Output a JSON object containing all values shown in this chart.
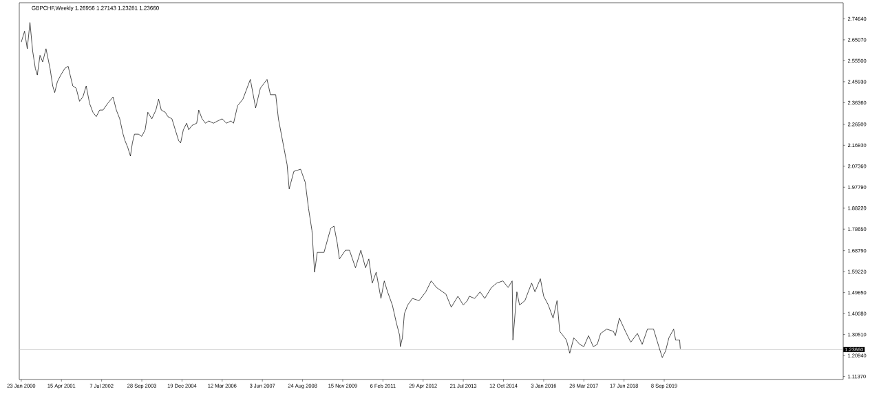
{
  "chart_data": {
    "type": "line",
    "title": "GBPCHF,Weekly 1.26956 1.27143 1.23281 1.23660",
    "x": [
      "2000-01-23",
      "2000-02-29",
      "2000-03-30",
      "2000-04-29",
      "2000-05-29",
      "2000-06-28",
      "2000-07-20",
      "2000-08-19",
      "2000-09-18",
      "2000-10-25",
      "2000-12-09",
      "2001-01-08",
      "2001-01-30",
      "2001-03-01",
      "2001-04-08",
      "2001-05-22",
      "2001-06-29",
      "2001-07-21",
      "2001-08-20",
      "2001-09-26",
      "2001-11-03",
      "2001-12-10",
      "2002-01-16",
      "2002-02-23",
      "2002-04-01",
      "2002-05-08",
      "2002-06-15",
      "2002-07-22",
      "2002-09-12",
      "2002-11-11",
      "2002-12-18",
      "2003-01-25",
      "2003-03-03",
      "2003-03-25",
      "2003-04-24",
      "2003-05-24",
      "2003-06-15",
      "2003-07-08",
      "2003-08-22",
      "2003-09-28",
      "2003-11-04",
      "2003-12-04",
      "2004-01-18",
      "2004-03-03",
      "2004-04-02",
      "2004-05-02",
      "2004-06-15",
      "2004-07-15",
      "2004-08-29",
      "2004-10-05",
      "2004-11-12",
      "2004-12-04",
      "2005-01-03",
      "2005-02-09",
      "2005-03-04",
      "2005-04-10",
      "2005-06-01",
      "2005-06-24",
      "2005-07-31",
      "2005-09-06",
      "2005-10-14",
      "2005-12-05",
      "2006-01-19",
      "2006-03-12",
      "2006-04-28",
      "2006-06-17",
      "2006-07-17",
      "2006-08-31",
      "2006-10-29",
      "2007-01-20",
      "2007-03-20",
      "2007-05-12",
      "2007-07-25",
      "2007-09-01",
      "2007-10-30",
      "2007-11-29",
      "2008-01-28",
      "2008-03-05",
      "2008-03-28",
      "2008-05-19",
      "2008-08-02",
      "2008-09-23",
      "2008-10-30",
      "2008-12-07",
      "2009-01-05",
      "2009-02-04",
      "2009-04-20",
      "2009-07-04",
      "2009-08-10",
      "2009-09-16",
      "2009-10-09",
      "2009-12-15",
      "2010-01-29",
      "2010-04-06",
      "2010-06-05",
      "2010-07-27",
      "2010-09-02",
      "2010-10-10",
      "2010-11-23",
      "2011-01-15",
      "2011-02-21",
      "2011-03-30",
      "2011-05-22",
      "2011-07-05",
      "2011-08-12",
      "2011-08-19",
      "2011-09-11",
      "2011-10-03",
      "2011-11-09",
      "2012-01-01",
      "2012-03-15",
      "2012-05-29",
      "2012-07-28",
      "2012-09-25",
      "2013-01-08",
      "2013-03-09",
      "2013-05-22",
      "2013-07-21",
      "2013-09-04",
      "2013-09-26",
      "2013-11-25",
      "2014-01-24",
      "2014-03-17",
      "2014-05-31",
      "2014-07-29",
      "2014-10-05",
      "2014-12-03",
      "2015-01-17",
      "2015-01-25",
      "2015-03-10",
      "2015-04-09",
      "2015-06-08",
      "2015-07-15",
      "2015-08-22",
      "2015-09-28",
      "2015-11-27",
      "2016-01-03",
      "2016-02-24",
      "2016-04-17",
      "2016-05-31",
      "2016-06-30",
      "2016-08-07",
      "2016-09-13",
      "2016-10-20",
      "2016-12-04",
      "2017-02-09",
      "2017-03-26",
      "2017-05-17",
      "2017-07-09",
      "2017-08-22",
      "2017-09-29",
      "2017-12-05",
      "2018-02-18",
      "2018-03-12",
      "2018-04-26",
      "2018-07-02",
      "2018-08-31",
      "2018-11-13",
      "2019-01-05",
      "2019-03-05",
      "2019-05-12",
      "2019-06-25",
      "2019-08-17",
      "2019-09-23",
      "2019-10-30",
      "2019-12-22",
      "2020-01-13",
      "2020-02-27",
      "2020-03-05"
    ],
    "series": [
      {
        "color": "#000000",
        "values": [
          2.64,
          2.69,
          2.61,
          2.73,
          2.6,
          2.52,
          2.49,
          2.58,
          2.55,
          2.61,
          2.52,
          2.44,
          2.41,
          2.46,
          2.49,
          2.52,
          2.53,
          2.49,
          2.44,
          2.43,
          2.37,
          2.39,
          2.44,
          2.36,
          2.32,
          2.3,
          2.33,
          2.33,
          2.36,
          2.39,
          2.33,
          2.29,
          2.22,
          2.19,
          2.16,
          2.12,
          2.18,
          2.22,
          2.22,
          2.21,
          2.24,
          2.32,
          2.29,
          2.33,
          2.38,
          2.33,
          2.32,
          2.3,
          2.29,
          2.24,
          2.19,
          2.18,
          2.24,
          2.27,
          2.24,
          2.26,
          2.27,
          2.33,
          2.29,
          2.27,
          2.28,
          2.27,
          2.28,
          2.29,
          2.27,
          2.28,
          2.27,
          2.35,
          2.38,
          2.47,
          2.34,
          2.43,
          2.47,
          2.4,
          2.4,
          2.29,
          2.16,
          2.08,
          1.97,
          2.05,
          2.06,
          2.0,
          1.88,
          1.78,
          1.59,
          1.68,
          1.68,
          1.79,
          1.8,
          1.72,
          1.65,
          1.69,
          1.69,
          1.61,
          1.69,
          1.61,
          1.65,
          1.54,
          1.59,
          1.47,
          1.55,
          1.5,
          1.44,
          1.36,
          1.3,
          1.25,
          1.29,
          1.4,
          1.44,
          1.47,
          1.46,
          1.5,
          1.55,
          1.52,
          1.49,
          1.43,
          1.48,
          1.44,
          1.46,
          1.48,
          1.47,
          1.5,
          1.47,
          1.52,
          1.54,
          1.55,
          1.52,
          1.55,
          1.28,
          1.5,
          1.44,
          1.46,
          1.5,
          1.54,
          1.5,
          1.56,
          1.48,
          1.44,
          1.38,
          1.46,
          1.32,
          1.3,
          1.28,
          1.22,
          1.29,
          1.26,
          1.25,
          1.3,
          1.25,
          1.26,
          1.31,
          1.33,
          1.32,
          1.3,
          1.38,
          1.32,
          1.27,
          1.31,
          1.26,
          1.33,
          1.33,
          1.27,
          1.2,
          1.23,
          1.29,
          1.33,
          1.28,
          1.28,
          1.24
        ]
      }
    ],
    "xlim": [
      "2000-01-01",
      "2025-02-23"
    ],
    "xticks": [
      {
        "value": "2000-01-23",
        "label": "23 Jan 2000"
      },
      {
        "value": "2001-04-15",
        "label": "15 Apr 2001"
      },
      {
        "value": "2002-07-07",
        "label": "7 Jul 2002"
      },
      {
        "value": "2003-09-28",
        "label": "28 Sep 2003"
      },
      {
        "value": "2004-12-19",
        "label": "19 Dec 2004"
      },
      {
        "value": "2006-03-12",
        "label": "12 Mar 2006"
      },
      {
        "value": "2007-06-03",
        "label": "3 Jun 2007"
      },
      {
        "value": "2008-08-24",
        "label": "24 Aug 2008"
      },
      {
        "value": "2009-11-15",
        "label": "15 Nov 2009"
      },
      {
        "value": "2011-02-06",
        "label": "6 Feb 2011"
      },
      {
        "value": "2012-04-29",
        "label": "29 Apr 2012"
      },
      {
        "value": "2013-07-21",
        "label": "21 Jul 2013"
      },
      {
        "value": "2014-10-12",
        "label": "12 Oct 2014"
      },
      {
        "value": "2016-01-03",
        "label": "3 Jan 2016"
      },
      {
        "value": "2017-03-26",
        "label": "26 Mar 2017"
      },
      {
        "value": "2018-06-17",
        "label": "17 Jun 2018"
      },
      {
        "value": "2019-09-08",
        "label": "8 Sep 2019"
      }
    ],
    "ylim": [
      1.1,
      2.82
    ],
    "yticks": [
      {
        "value": 2.7464,
        "label": "2.74640"
      },
      {
        "value": 2.6507,
        "label": "2.65070"
      },
      {
        "value": 2.555,
        "label": "2.55500"
      },
      {
        "value": 2.4593,
        "label": "2.45930"
      },
      {
        "value": 2.3636,
        "label": "2.36360"
      },
      {
        "value": 2.265,
        "label": "2.26500"
      },
      {
        "value": 2.1693,
        "label": "2.16930"
      },
      {
        "value": 2.0736,
        "label": "2.07360"
      },
      {
        "value": 1.9779,
        "label": "1.97790"
      },
      {
        "value": 1.8822,
        "label": "1.88220"
      },
      {
        "value": 1.7865,
        "label": "1.78650"
      },
      {
        "value": 1.6879,
        "label": "1.68790"
      },
      {
        "value": 1.5922,
        "label": "1.59220"
      },
      {
        "value": 1.4965,
        "label": "1.49650"
      },
      {
        "value": 1.4008,
        "label": "1.40080"
      },
      {
        "value": 1.3051,
        "label": "1.30510"
      },
      {
        "value": 1.2094,
        "label": "1.20940"
      },
      {
        "value": 1.1137,
        "label": "1.11370"
      }
    ],
    "ref_lines": [
      {
        "axis": "y",
        "value": 1.2366,
        "label": "1.23660",
        "color": "#c0c0c0"
      }
    ],
    "marker": "none",
    "line_style": "solid",
    "grid": false
  }
}
